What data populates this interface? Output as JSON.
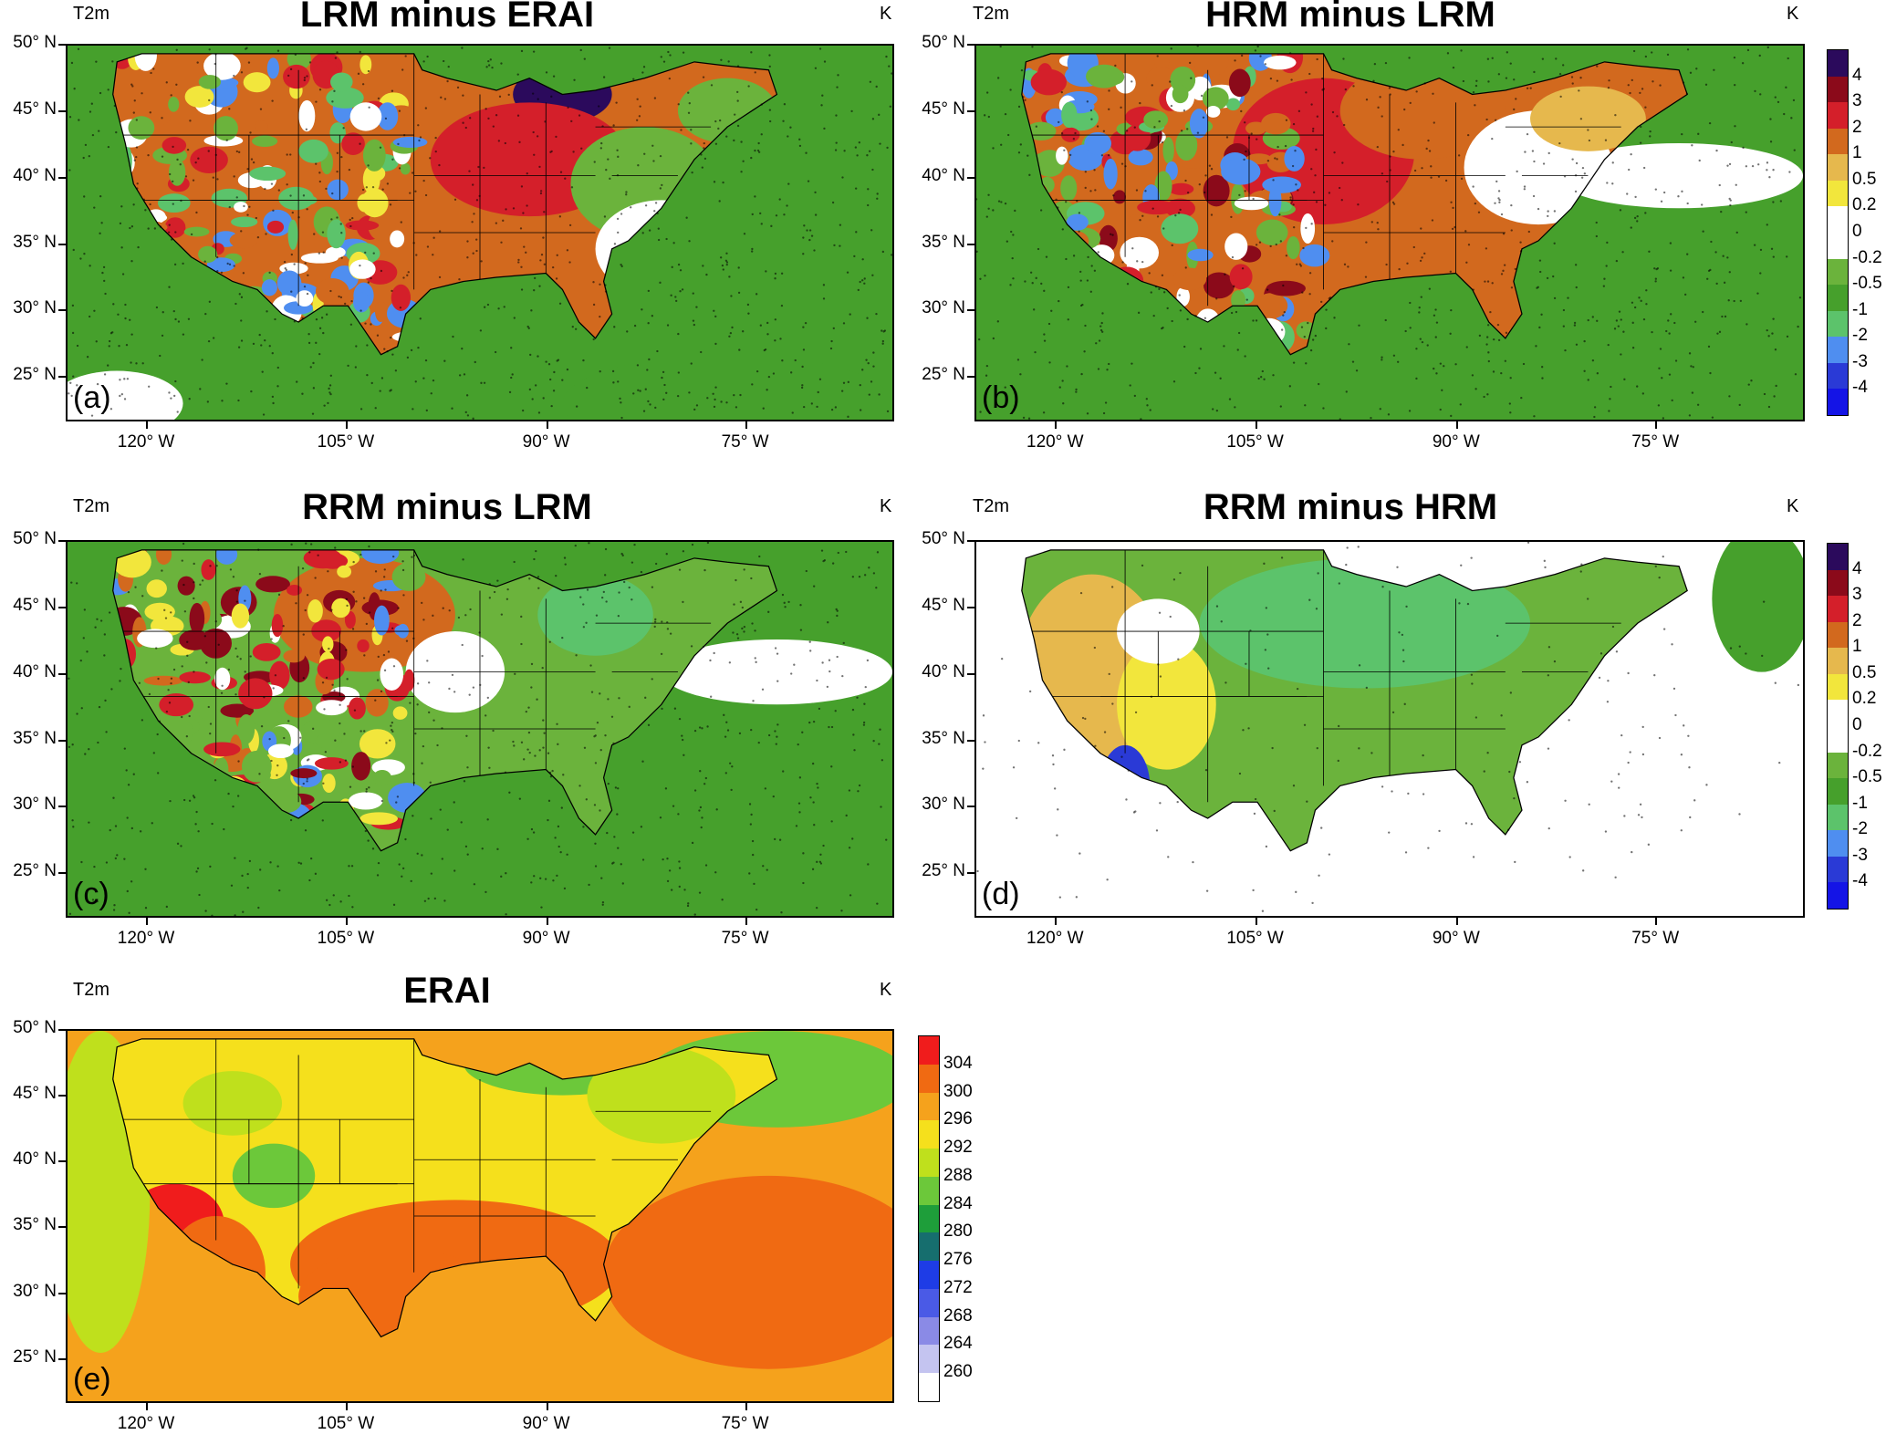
{
  "panels": [
    {
      "id": "a",
      "var": "T2m",
      "title": "LRM minus ERAI",
      "unit": "K",
      "letter": "(a)",
      "type": "diff"
    },
    {
      "id": "b",
      "var": "T2m",
      "title": "HRM minus LRM",
      "unit": "K",
      "letter": "(b)",
      "type": "diff"
    },
    {
      "id": "c",
      "var": "T2m",
      "title": "RRM minus LRM",
      "unit": "K",
      "letter": "(c)",
      "type": "diff"
    },
    {
      "id": "d",
      "var": "T2m",
      "title": "RRM minus HRM",
      "unit": "K",
      "letter": "(d)",
      "type": "diff"
    },
    {
      "id": "e",
      "var": "T2m",
      "title": "ERAI",
      "unit": "K",
      "letter": "(e)",
      "type": "abs"
    }
  ],
  "lat_labels": [
    "50° N",
    "45° N",
    "40° N",
    "35° N",
    "30° N",
    "25° N"
  ],
  "lon_labels": [
    "120° W",
    "105° W",
    "90° W",
    "75° W"
  ],
  "diff_colorbar": {
    "labels": [
      "4",
      "3",
      "2",
      "1",
      "0.5",
      "0.2",
      "0",
      "-0.2",
      "-0.5",
      "-1",
      "-2",
      "-3",
      "-4"
    ],
    "colors": [
      "#2b0a5c",
      "#8b0a1a",
      "#d41f2a",
      "#d2691e",
      "#e6b84d",
      "#f2e63c",
      "#ffffff",
      "#ffffff",
      "#6bb33c",
      "#46a02c",
      "#5cc36b",
      "#4f8ef0",
      "#2a3ad6",
      "#1414e6"
    ]
  },
  "abs_colorbar": {
    "labels": [
      "304",
      "300",
      "296",
      "292",
      "288",
      "284",
      "280",
      "276",
      "272",
      "268",
      "264",
      "260"
    ],
    "colors": [
      "#f01c1c",
      "#f06a12",
      "#f5a21c",
      "#f5e01c",
      "#bfe01c",
      "#6cc83a",
      "#1e9e3a",
      "#166e6e",
      "#1e3ce6",
      "#4a5ae6",
      "#8a8ae6",
      "#c4c4f0",
      "#ffffff"
    ]
  },
  "palette": {
    "darkred": "#8b0a1a",
    "red": "#d41f2a",
    "orange": "#d2691e",
    "tan": "#e6b84d",
    "yellow": "#f2e63c",
    "white": "#ffffff",
    "green": "#6bb33c",
    "dgreen": "#46a02c",
    "lgreen": "#5cc36b",
    "lblue": "#4f8ef0",
    "blue": "#2a3ad6",
    "purple": "#2b0a5c"
  }
}
